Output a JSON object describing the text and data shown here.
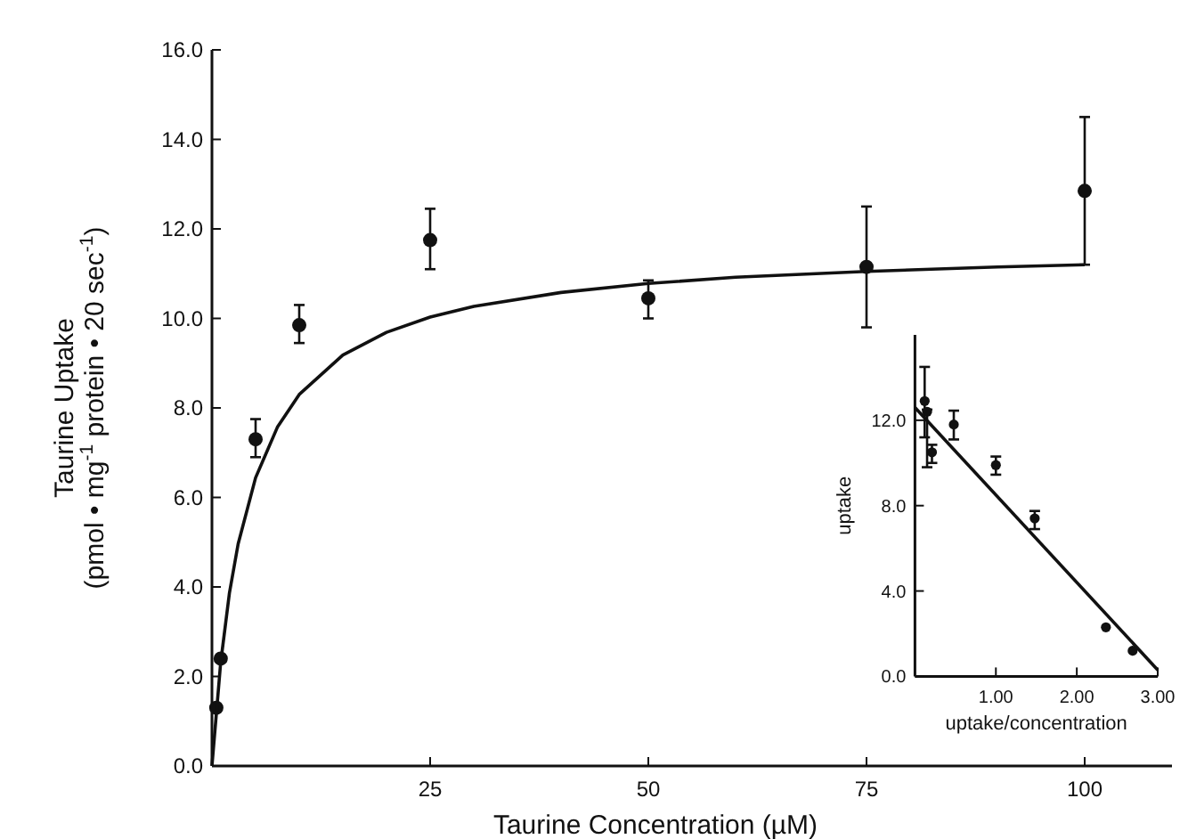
{
  "chart_data": [
    {
      "type": "scatter",
      "xlabel": "Taurine Concentration (µM)",
      "ylabel": "Taurine Uptake\n(pmol • mg$^{-1}$ protein • 20 sec$^{-1}$)",
      "xlim": [
        0,
        110
      ],
      "ylim": [
        0,
        16
      ],
      "xticks": [
        25,
        50,
        75,
        100
      ],
      "yticks": [
        {
          "value": 0,
          "label": "0.0"
        },
        {
          "value": 2,
          "label": "2.0"
        },
        {
          "value": 4,
          "label": "4.0"
        },
        {
          "value": 6,
          "label": "6.0"
        },
        {
          "value": 8,
          "label": "8.0"
        },
        {
          "value": 10,
          "label": "10.0"
        },
        {
          "value": 12,
          "label": "12.0"
        },
        {
          "value": 14,
          "label": "14.0"
        },
        {
          "value": 16,
          "label": "16.0"
        }
      ],
      "grid": false,
      "marker": "circle",
      "series": [
        {
          "type": "scatter",
          "color": "#111111",
          "x": [
            0.5,
            1,
            5,
            10,
            25,
            50,
            75,
            100
          ],
          "values": [
            1.3,
            2.4,
            7.3,
            9.85,
            11.75,
            10.45,
            11.15,
            12.85
          ],
          "errors": [
            null,
            null,
            [
              6.9,
              7.75
            ],
            [
              9.45,
              10.3
            ],
            [
              11.1,
              12.45
            ],
            [
              10.0,
              10.85
            ],
            [
              9.8,
              12.5
            ],
            [
              11.2,
              14.5
            ]
          ]
        },
        {
          "type": "line",
          "color": "#111111",
          "line_style": "solid",
          "marker": "none",
          "x": [
            0,
            1,
            2,
            3,
            5,
            7.5,
            10,
            15,
            20,
            25,
            30,
            40,
            50,
            60,
            75,
            90,
            100
          ],
          "values": [
            0,
            2.31,
            3.86,
            4.96,
            6.44,
            7.57,
            8.3,
            9.18,
            9.69,
            10.03,
            10.27,
            10.58,
            10.78,
            10.92,
            11.05,
            11.15,
            11.2
          ]
        }
      ]
    },
    {
      "type": "scatter",
      "xlabel": "uptake/concentration",
      "ylabel": "uptake",
      "xlim": [
        0,
        3
      ],
      "ylim": [
        0,
        16
      ],
      "xticks": [
        {
          "value": 1,
          "label": "1.00"
        },
        {
          "value": 2,
          "label": "2.00"
        },
        {
          "value": 3,
          "label": "3.00"
        }
      ],
      "yticks": [
        {
          "value": 0,
          "label": "0.0"
        },
        {
          "value": 4,
          "label": "4.0"
        },
        {
          "value": 8,
          "label": "8.0"
        },
        {
          "value": 12,
          "label": "12.0"
        }
      ],
      "grid": false,
      "marker": "circle",
      "series": [
        {
          "type": "scatter",
          "color": "#111111",
          "x": [
            0.12,
            0.15,
            0.21,
            0.48,
            1.0,
            1.48,
            2.36,
            2.69
          ],
          "values": [
            12.9,
            12.4,
            10.5,
            11.8,
            9.9,
            7.4,
            2.3,
            1.2
          ],
          "errors": [
            [
              11.2,
              14.5
            ],
            [
              9.8,
              12.5
            ],
            [
              10.0,
              10.85
            ],
            [
              11.1,
              12.45
            ],
            [
              9.45,
              10.3
            ],
            [
              6.9,
              7.75
            ],
            null,
            null
          ]
        },
        {
          "type": "line",
          "color": "#111111",
          "line_style": "solid",
          "marker": "none",
          "x": [
            0,
            3
          ],
          "values": [
            12.6,
            0.3
          ]
        }
      ]
    }
  ]
}
